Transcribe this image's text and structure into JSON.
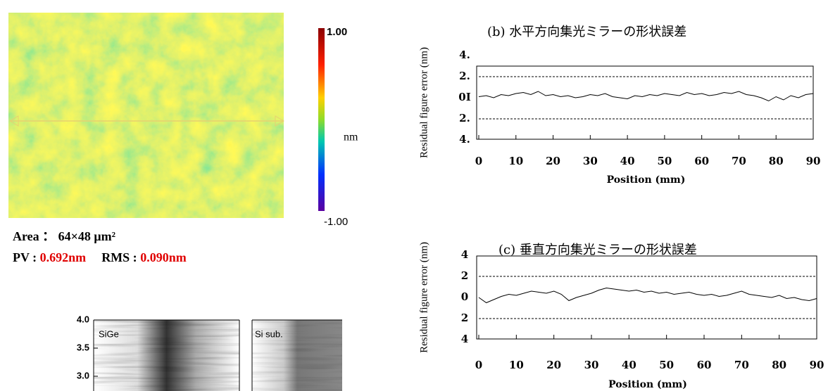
{
  "figure": {
    "area": "Area ： 64×48 μm²",
    "pv_label": "PV : ",
    "pv": "0.692nm",
    "rms_label": "RMS : ",
    "rms": "0.090nm",
    "colorbar": {
      "max": "1.00",
      "unit": "nm",
      "min": "-1.00"
    },
    "profile": {
      "yticks": [
        {
          "value": 4,
          "label": "4.0"
        },
        {
          "value": 3.5,
          "label": "3.5"
        },
        {
          "value": 3,
          "label": "3.0"
        }
      ],
      "left": "SiGe",
      "right": "Si sub."
    }
  },
  "chart_data": [
    {
      "type": "line",
      "title": "(b) 水平方向集光ミラーの形状誤差",
      "xlabel": "Position (mm)",
      "ylabel": "Residual figure error (nm)",
      "color": "#000000",
      "x": [
        0,
        2,
        4,
        6,
        8,
        10,
        12,
        14,
        16,
        18,
        20,
        22,
        24,
        26,
        28,
        30,
        32,
        34,
        36,
        38,
        40,
        42,
        44,
        46,
        48,
        50,
        52,
        54,
        56,
        58,
        60,
        62,
        64,
        66,
        68,
        70,
        72,
        74,
        76,
        78,
        80,
        82,
        84,
        86,
        88,
        90
      ],
      "values": [
        0.1,
        0.2,
        0.0,
        0.3,
        0.2,
        0.4,
        0.5,
        0.3,
        0.6,
        0.2,
        0.3,
        0.1,
        0.2,
        0.0,
        0.1,
        0.3,
        0.2,
        0.4,
        0.1,
        0.0,
        -0.1,
        0.2,
        0.1,
        0.3,
        0.2,
        0.4,
        0.3,
        0.2,
        0.5,
        0.3,
        0.4,
        0.2,
        0.3,
        0.5,
        0.4,
        0.6,
        0.3,
        0.2,
        0.0,
        -0.3,
        0.1,
        -0.2,
        0.2,
        0.0,
        0.3,
        0.4
      ],
      "xlim": [
        0,
        90
      ],
      "xticks": [
        0,
        10,
        20,
        30,
        40,
        50,
        60,
        70,
        80,
        90
      ],
      "ylim": [
        -4,
        4
      ],
      "yticks": [
        {
          "value": 4,
          "label": "4."
        },
        {
          "value": 2,
          "label": "2."
        },
        {
          "value": 0,
          "label": "0I"
        },
        {
          "value": -2,
          "label": "2."
        },
        {
          "value": -4,
          "label": "4."
        }
      ],
      "reference_lines": [
        2,
        -2
      ]
    },
    {
      "type": "line",
      "title": "(c) 垂直方向集光ミラーの形状誤差",
      "xlabel": "Position (mm)",
      "ylabel": "Residual figure error (nm)",
      "color": "#000000",
      "x": [
        0,
        2,
        4,
        6,
        8,
        10,
        12,
        14,
        16,
        18,
        20,
        22,
        24,
        26,
        28,
        30,
        32,
        34,
        36,
        38,
        40,
        42,
        44,
        46,
        48,
        50,
        52,
        54,
        56,
        58,
        60,
        62,
        64,
        66,
        68,
        70,
        72,
        74,
        76,
        78,
        80,
        82,
        84,
        86,
        88,
        90
      ],
      "values": [
        0.0,
        -0.5,
        -0.2,
        0.1,
        0.3,
        0.2,
        0.4,
        0.6,
        0.5,
        0.4,
        0.6,
        0.3,
        -0.3,
        0.0,
        0.2,
        0.4,
        0.7,
        0.9,
        0.8,
        0.7,
        0.6,
        0.7,
        0.5,
        0.6,
        0.4,
        0.5,
        0.3,
        0.4,
        0.5,
        0.3,
        0.2,
        0.3,
        0.1,
        0.2,
        0.4,
        0.6,
        0.3,
        0.2,
        0.1,
        0.0,
        0.2,
        -0.1,
        0.0,
        -0.2,
        -0.3,
        -0.1
      ],
      "xlim": [
        0,
        90
      ],
      "xticks": [
        0,
        10,
        20,
        30,
        40,
        50,
        60,
        70,
        80,
        90
      ],
      "ylim": [
        -4,
        4
      ],
      "yticks": [
        4,
        2,
        0,
        {
          "value": -2,
          "label": "2"
        },
        {
          "value": -4,
          "label": "4"
        }
      ],
      "reference_lines": [
        2,
        -2
      ]
    }
  ]
}
